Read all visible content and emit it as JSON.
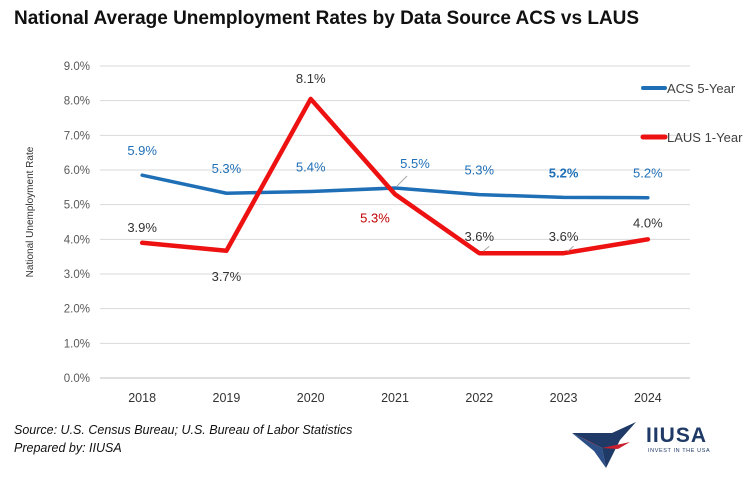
{
  "title": "National Average Unemployment Rates by Data Source ACS vs LAUS",
  "source_line": "Source: U.S. Census Bureau; U.S. Bureau of Labor Statistics",
  "prepared_line": "Prepared by: IIUSA",
  "logo": {
    "name": "IIUSA",
    "tagline": "INVEST IN THE USA"
  },
  "colors": {
    "acs": "#1f6fb7",
    "laus": "#ee1111",
    "grid": "#d9d9d9",
    "axis_text": "#595959"
  },
  "chart_data": {
    "type": "line",
    "title": "National Average Unemployment Rates by Data Source ACS vs LAUS",
    "xlabel": "",
    "ylabel": "National Unemployment Rate",
    "categories": [
      "2018",
      "2019",
      "2020",
      "2021",
      "2022",
      "2023",
      "2024"
    ],
    "ylim": [
      0,
      9
    ],
    "yticks": [
      "0.0%",
      "1.0%",
      "2.0%",
      "3.0%",
      "4.0%",
      "5.0%",
      "6.0%",
      "7.0%",
      "8.0%",
      "9.0%"
    ],
    "grid": true,
    "legend_position": "right",
    "series": [
      {
        "name": "ACS 5-Year",
        "values": [
          5.85,
          5.33,
          5.38,
          5.48,
          5.29,
          5.21,
          5.2
        ],
        "labels": [
          "5.9%",
          "5.3%",
          "5.4%",
          "5.5%",
          "5.3%",
          "5.2%",
          "5.2%"
        ]
      },
      {
        "name": "LAUS 1-Year",
        "values": [
          3.9,
          3.67,
          8.05,
          5.3,
          3.6,
          3.6,
          4.0
        ],
        "labels": [
          "3.9%",
          "3.7%",
          "8.1%",
          "5.3%",
          "3.6%",
          "3.6%",
          "4.0%"
        ]
      }
    ]
  }
}
